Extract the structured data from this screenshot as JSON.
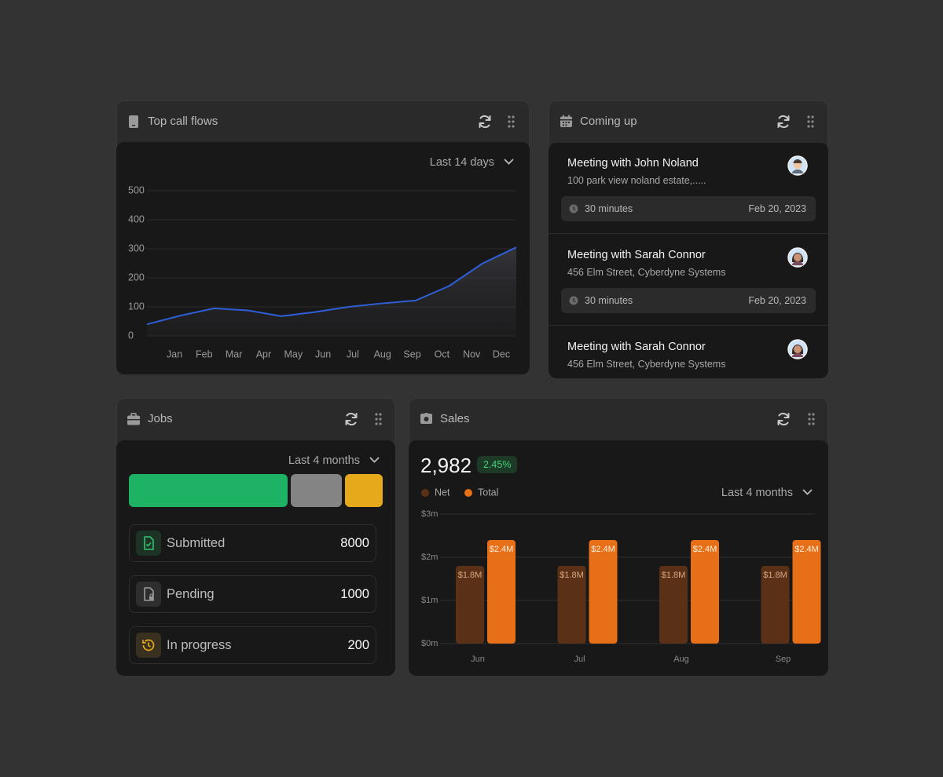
{
  "call_flows": {
    "title": "Top call flows",
    "filter": "Last 14 days",
    "chart_data": {
      "type": "line",
      "categories": [
        "Jan",
        "Feb",
        "Mar",
        "Apr",
        "May",
        "Jun",
        "Jul",
        "Aug",
        "Sep",
        "Oct",
        "Nov",
        "Dec"
      ],
      "values": [
        40,
        70,
        95,
        88,
        68,
        82,
        100,
        112,
        122,
        172,
        250,
        305
      ],
      "color": "#2f5fd8",
      "ylim": [
        0,
        500
      ],
      "yticks": [
        0,
        100,
        200,
        300,
        400,
        500
      ],
      "grid": true
    }
  },
  "coming_up": {
    "title": "Coming up",
    "events": [
      {
        "title": "Meeting with John Noland",
        "address": "100 park view noland estate,.....",
        "duration": "30 minutes",
        "date": "Feb 20, 2023"
      },
      {
        "title": "Meeting with Sarah Connor",
        "address": "456 Elm Street, Cyberdyne Systems",
        "duration": "30 minutes",
        "date": "Feb 20, 2023"
      },
      {
        "title": "Meeting with Sarah Connor",
        "address": "456 Elm Street, Cyberdyne Systems"
      }
    ]
  },
  "jobs": {
    "title": "Jobs",
    "filter": "Last 4 months",
    "statuses": [
      {
        "label": "Submitted",
        "count": 8000
      },
      {
        "label": "Pending",
        "count": 1000
      },
      {
        "label": "In progress",
        "count": 200
      }
    ]
  },
  "sales": {
    "title": "Sales",
    "total": "2,982",
    "change": "2.45%",
    "filter": "Last 4 months",
    "chart_data": {
      "type": "bar",
      "categories": [
        "Jun",
        "Jul",
        "Aug",
        "Sep"
      ],
      "series": [
        {
          "name": "Net",
          "color": "#5a3116",
          "values": [
            1.8,
            1.8,
            1.8,
            1.8
          ],
          "value_labels": [
            "$1.8M",
            "$1.8M",
            "$1.8M",
            "$1.8M"
          ]
        },
        {
          "name": "Total",
          "color": "#e66f17",
          "values": [
            2.4,
            2.4,
            2.4,
            2.4
          ],
          "value_labels": [
            "$2.4M",
            "$2.4M",
            "$2.4M",
            "$2.4M"
          ]
        }
      ],
      "ylim": [
        0,
        3
      ],
      "yticks": [
        {
          "value": 0,
          "label": "$0m"
        },
        {
          "value": 1,
          "label": "$1m"
        },
        {
          "value": 2,
          "label": "$2m"
        },
        {
          "value": 3,
          "label": "$3m"
        }
      ],
      "grid": true,
      "legend": "top-left"
    }
  }
}
